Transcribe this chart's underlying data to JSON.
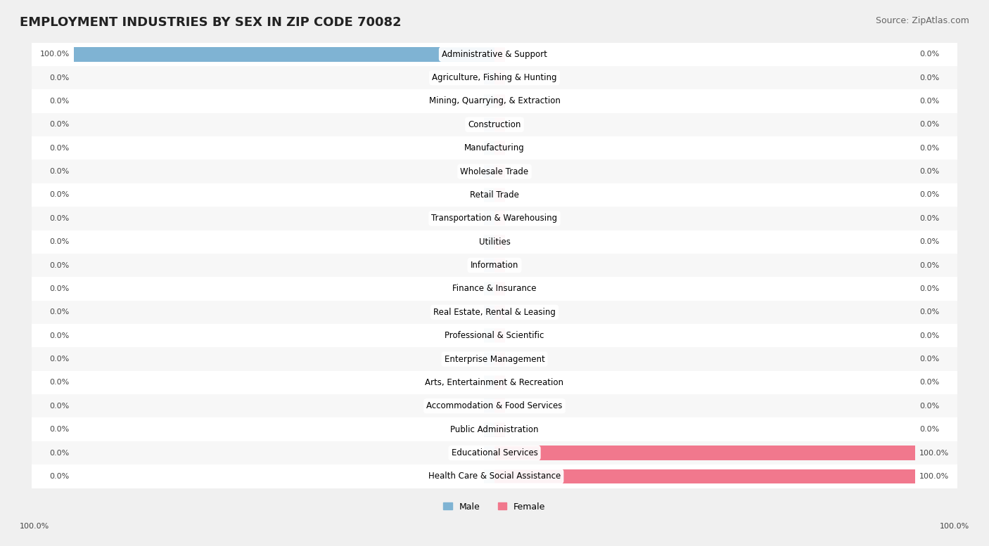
{
  "title": "EMPLOYMENT INDUSTRIES BY SEX IN ZIP CODE 70082",
  "source": "Source: ZipAtlas.com",
  "industries": [
    "Administrative & Support",
    "Agriculture, Fishing & Hunting",
    "Mining, Quarrying, & Extraction",
    "Construction",
    "Manufacturing",
    "Wholesale Trade",
    "Retail Trade",
    "Transportation & Warehousing",
    "Utilities",
    "Information",
    "Finance & Insurance",
    "Real Estate, Rental & Leasing",
    "Professional & Scientific",
    "Enterprise Management",
    "Arts, Entertainment & Recreation",
    "Accommodation & Food Services",
    "Public Administration",
    "Educational Services",
    "Health Care & Social Assistance"
  ],
  "male": [
    100.0,
    0.0,
    0.0,
    0.0,
    0.0,
    0.0,
    0.0,
    0.0,
    0.0,
    0.0,
    0.0,
    0.0,
    0.0,
    0.0,
    0.0,
    0.0,
    0.0,
    0.0,
    0.0
  ],
  "female": [
    0.0,
    0.0,
    0.0,
    0.0,
    0.0,
    0.0,
    0.0,
    0.0,
    0.0,
    0.0,
    0.0,
    0.0,
    0.0,
    0.0,
    0.0,
    0.0,
    0.0,
    100.0,
    100.0
  ],
  "male_color": "#7fb3d3",
  "female_color": "#f1788d",
  "bg_color": "#f0f0f0",
  "bar_bg_color": "#e8e8e8",
  "title_fontsize": 13,
  "source_fontsize": 9,
  "label_fontsize": 8.5,
  "bar_label_fontsize": 8,
  "bar_height": 0.62,
  "max_val": 100.0
}
